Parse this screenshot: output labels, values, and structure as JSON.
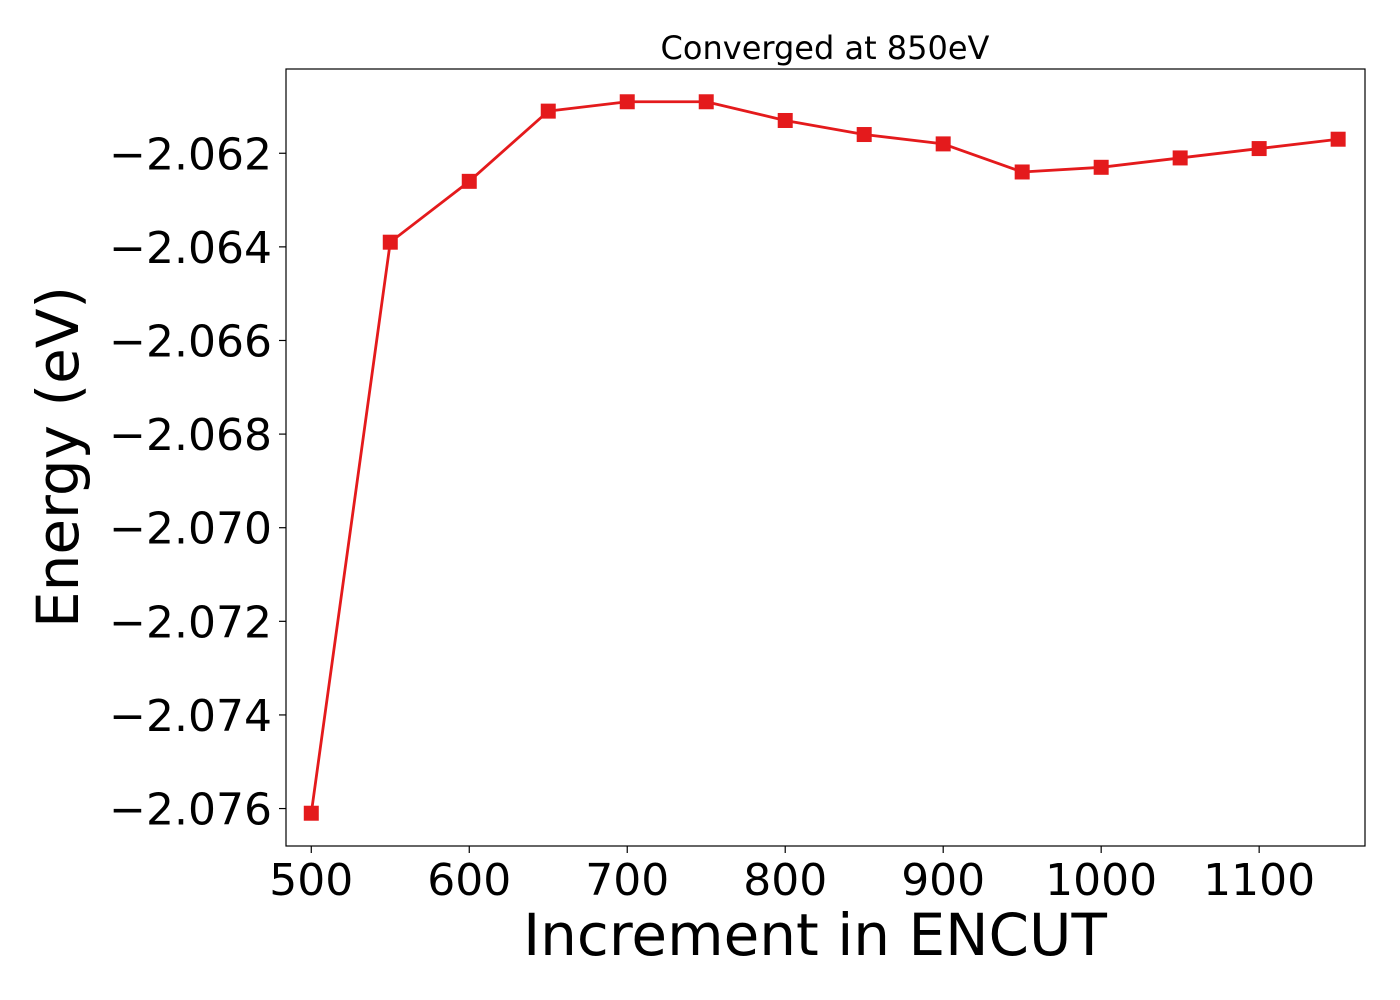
{
  "chart_data": {
    "type": "line",
    "title": "Converged at 850eV",
    "xlabel": "Increment in ENCUT",
    "ylabel": "Energy (eV)",
    "x": [
      500,
      550,
      600,
      650,
      700,
      750,
      800,
      850,
      900,
      950,
      1000,
      1050,
      1100,
      1150
    ],
    "series": [
      {
        "values": [
          -2.0761,
          -2.0639,
          -2.0626,
          -2.0611,
          -2.0609,
          -2.0609,
          -2.0613,
          -2.0616,
          -2.0618,
          -2.0624,
          -2.0623,
          -2.0621,
          -2.0619,
          -2.0617
        ],
        "color": "#e41a1c",
        "marker": "square"
      }
    ],
    "xlim": [
      484,
      1167
    ],
    "ylim": [
      -2.0768,
      -2.0602
    ],
    "xticks": [
      500,
      600,
      700,
      800,
      900,
      1000,
      1100
    ],
    "xtick_labels": [
      "500",
      "600",
      "700",
      "800",
      "900",
      "1000",
      "1100"
    ],
    "yticks": [
      -2.076,
      -2.074,
      -2.072,
      -2.07,
      -2.068,
      -2.066,
      -2.064,
      -2.062
    ],
    "ytick_labels": [
      "−2.076",
      "−2.074",
      "−2.072",
      "−2.070",
      "−2.068",
      "−2.066",
      "−2.064",
      "−2.062"
    ],
    "grid": false,
    "legend": "none"
  }
}
